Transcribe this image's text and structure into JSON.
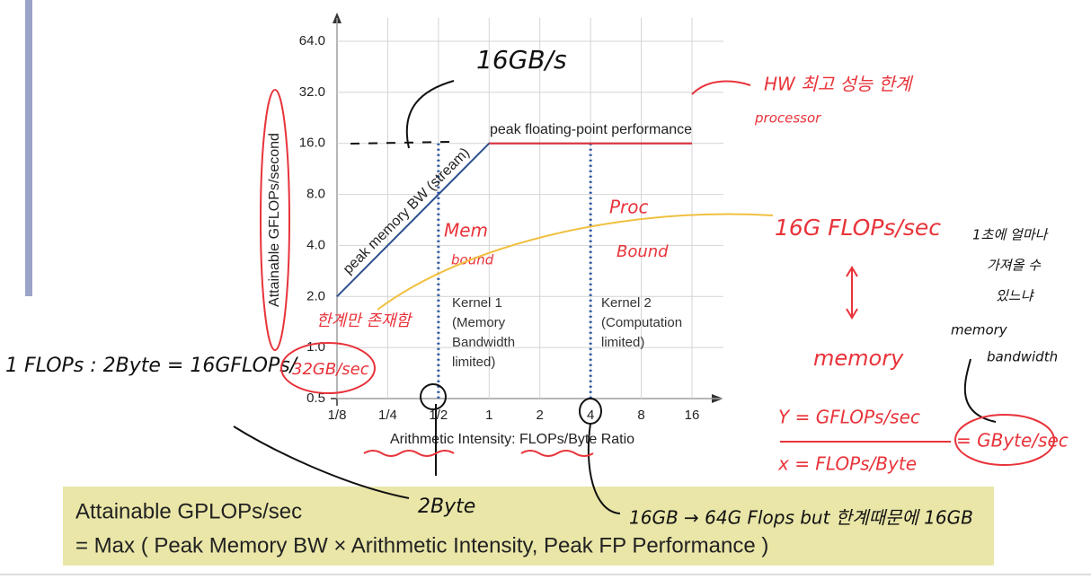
{
  "chart_data": {
    "type": "line",
    "ylabel": "Attainable GFLOPs/second",
    "xlabel": "Arithmetic Intensity: FLOPs/Byte Ratio",
    "log_x": true,
    "log_y": true,
    "grid": true,
    "xlim": [
      0.125,
      16
    ],
    "ylim": [
      0.5,
      64
    ],
    "xticks": [
      {
        "value": 0.125,
        "label": "1/8"
      },
      {
        "value": 0.25,
        "label": "1/4"
      },
      {
        "value": 0.5,
        "label": "1/2"
      },
      1,
      2,
      4,
      8,
      16
    ],
    "yticks": [
      0.5,
      {
        "value": 1,
        "label": "1.0"
      },
      {
        "value": 2,
        "label": "2.0"
      },
      {
        "value": 4,
        "label": "4.0"
      },
      {
        "value": 8,
        "label": "8.0"
      },
      {
        "value": 16,
        "label": "16.0"
      },
      {
        "value": 32,
        "label": "32.0"
      },
      {
        "value": 64,
        "label": "64.0"
      }
    ],
    "series": [
      {
        "color": "#2b4f8e",
        "x": [
          0.125,
          1,
          16
        ],
        "values": [
          2,
          16,
          16
        ]
      },
      {
        "color": "#e8333a",
        "x": [
          1,
          16
        ],
        "values": [
          16,
          16
        ]
      }
    ],
    "reference_x": [
      0.5,
      4
    ],
    "memory_label": "peak memory BW (stream)",
    "compute_label": "peak floating-point performance",
    "kernel1": [
      "Kernel 1",
      "(Memory",
      "Bandwidth",
      "limited)"
    ],
    "kernel2": [
      "Kernel 2",
      "(Computation",
      "limited)"
    ]
  },
  "notes": [
    "16GB/s",
    "HW 최고 성능 한계",
    "processor",
    "Mem",
    "bound",
    "Proc",
    "Bound",
    "16G FLOPs/sec",
    "memory",
    "한계만 존재함",
    "1 FLOPs : 2Byte = 16GFLOPs/",
    "32GB/sec",
    "Y = GFLOPs/sec",
    "x = FLOPs/Byte",
    "= GByte/sec",
    "1초에 얼마나",
    "가져올 수",
    "있느냐",
    "memory",
    "bandwidth",
    "2Byte",
    "16GB → 64G Flops but 한계때문에 16GB"
  ],
  "formula": [
    "Attainable GPLOPs/sec",
    "= Max ( Peak Memory BW × Arithmetic Intensity, Peak FP Performance )"
  ]
}
